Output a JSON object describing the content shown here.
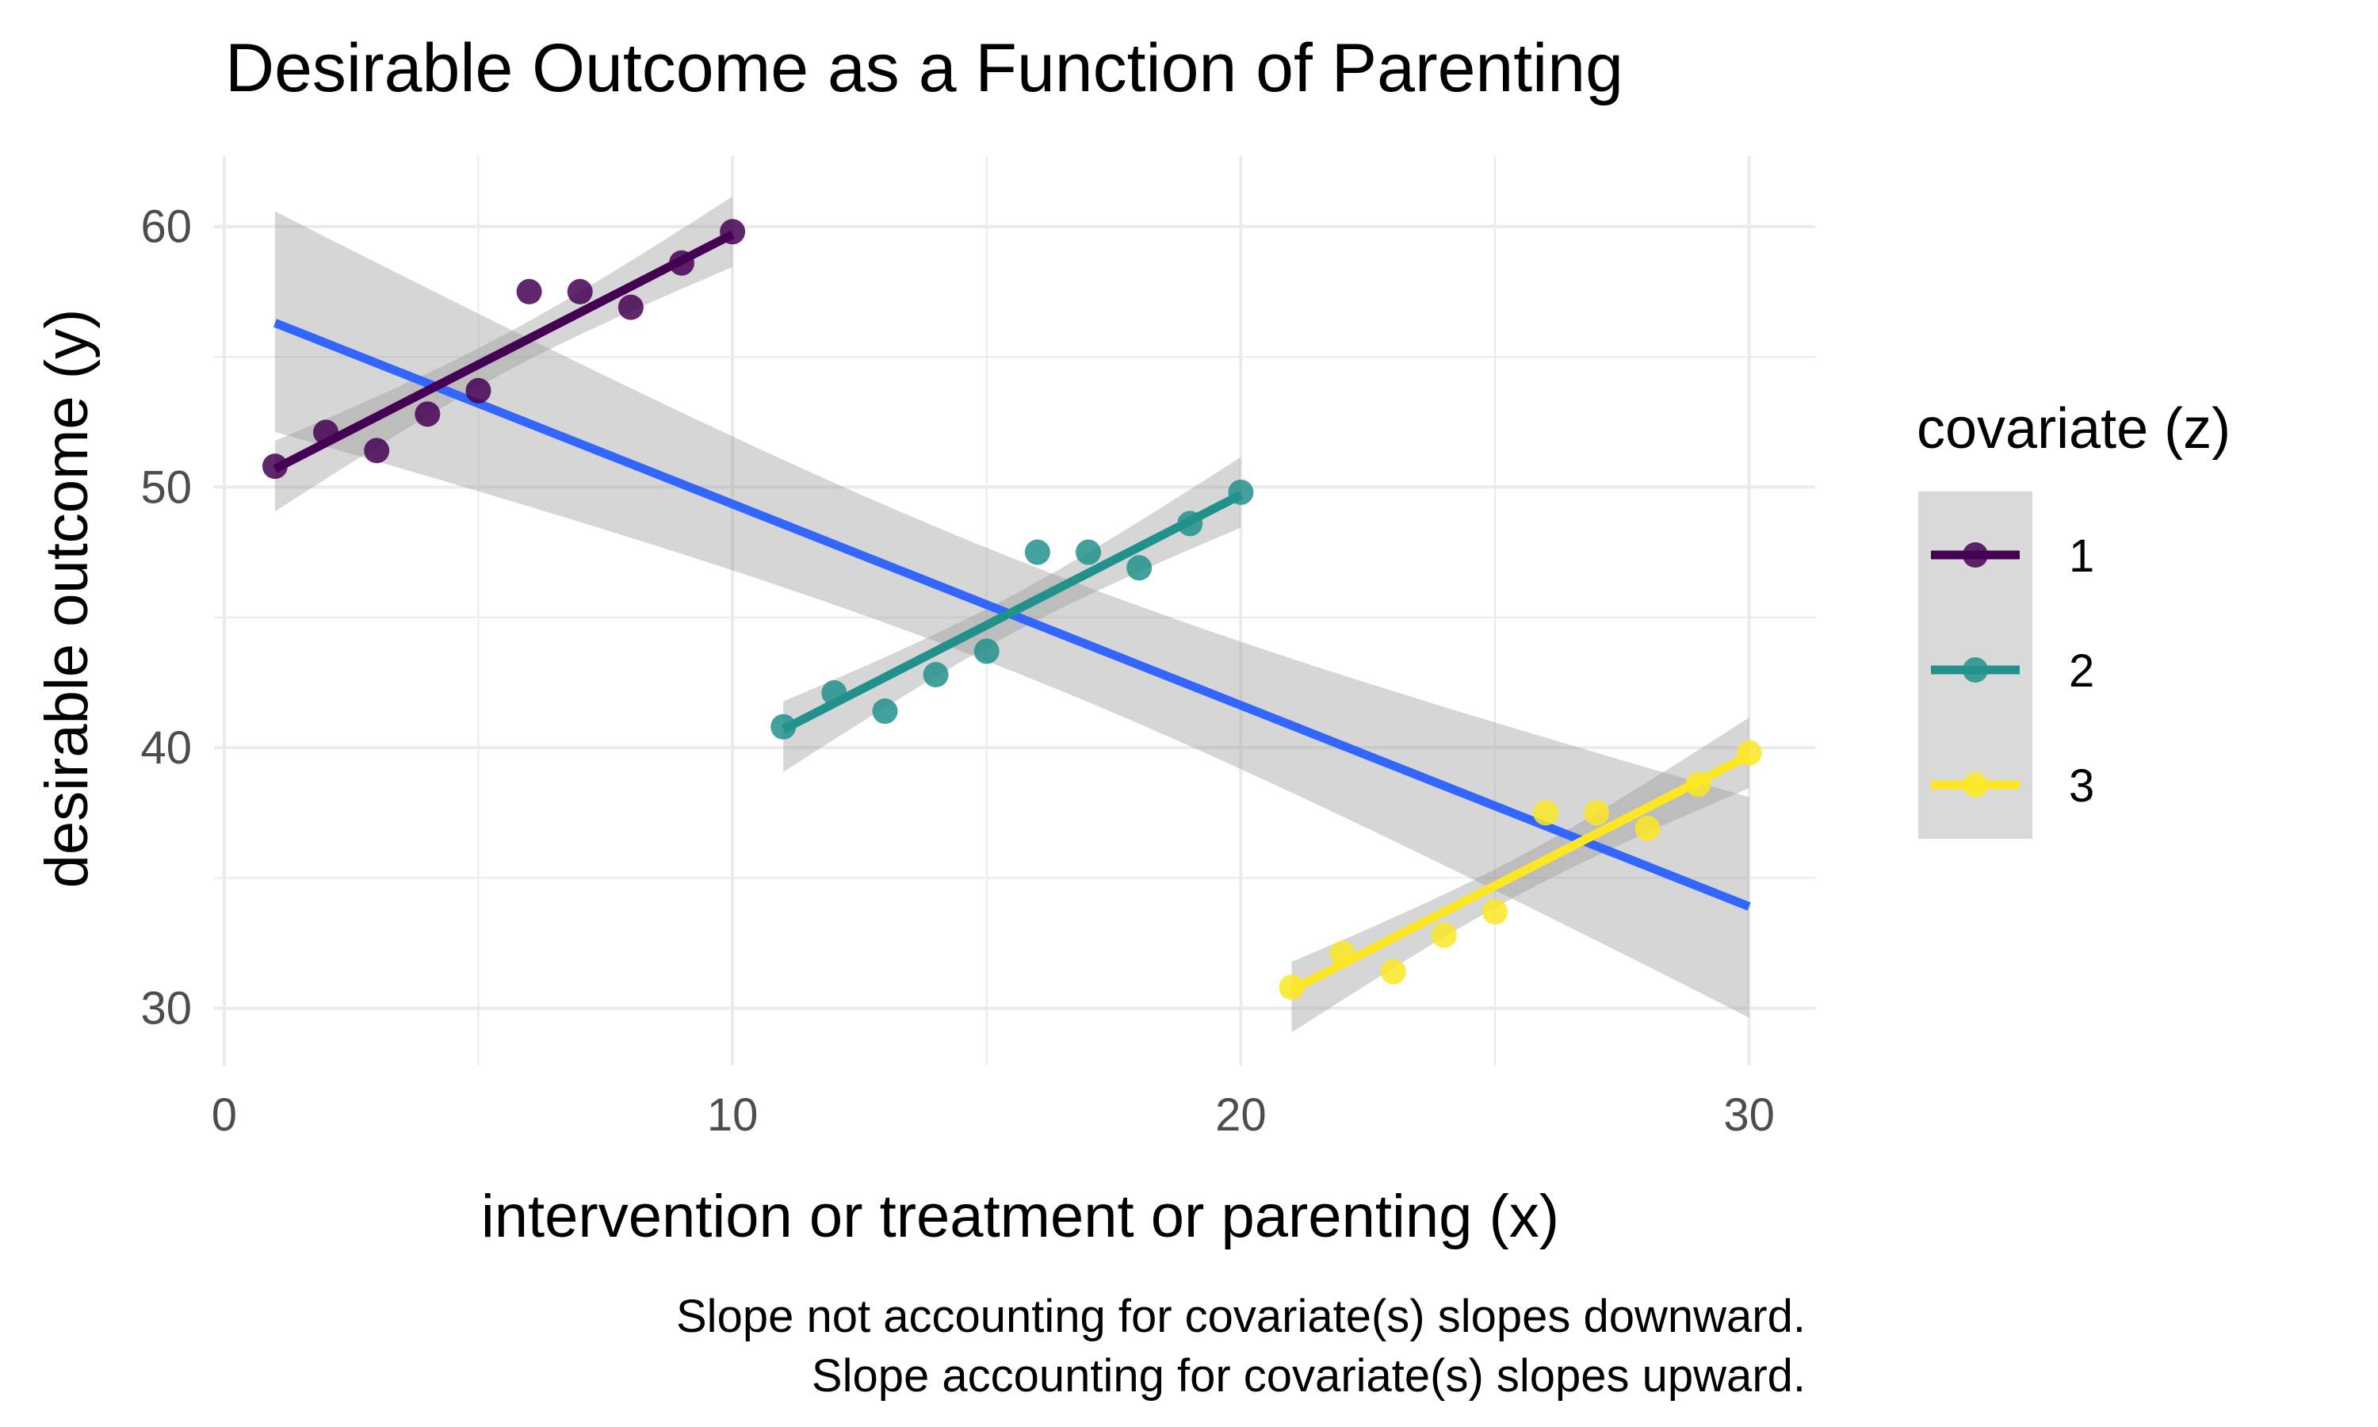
{
  "chart_data": {
    "type": "scatter",
    "title": "Desirable Outcome as a Function of Parenting",
    "xlabel": "intervention or treatment or parenting (x)",
    "ylabel": "desirable outcome (y)",
    "xlim": [
      -0.2,
      31.3
    ],
    "ylim": [
      27.8,
      62.7
    ],
    "x_ticks": [
      0,
      10,
      20,
      30
    ],
    "y_ticks": [
      30,
      40,
      50,
      60
    ],
    "grid": true,
    "legend": {
      "title": "covariate (z)",
      "position": "right"
    },
    "caption": [
      "Slope not accounting for covariate(s) slopes downward.",
      "Slope accounting for covariate(s) slopes upward."
    ],
    "series": [
      {
        "name": "1",
        "color": "#440154",
        "points": [
          [
            1,
            50.8
          ],
          [
            2,
            52.1
          ],
          [
            3,
            51.4
          ],
          [
            4,
            52.8
          ],
          [
            5,
            53.7
          ],
          [
            6,
            57.5
          ],
          [
            7,
            57.5
          ],
          [
            8,
            56.9
          ],
          [
            9,
            58.6
          ],
          [
            10,
            59.8
          ]
        ],
        "fit": {
          "x": [
            1,
            10
          ],
          "y": [
            50.7,
            59.7
          ]
        }
      },
      {
        "name": "2",
        "color": "#21918c",
        "points": [
          [
            11,
            40.8
          ],
          [
            12,
            42.1
          ],
          [
            13,
            41.4
          ],
          [
            14,
            42.8
          ],
          [
            15,
            43.7
          ],
          [
            16,
            47.5
          ],
          [
            17,
            47.5
          ],
          [
            18,
            46.9
          ],
          [
            19,
            48.6
          ],
          [
            20,
            49.8
          ]
        ],
        "fit": {
          "x": [
            11,
            20
          ],
          "y": [
            40.7,
            49.7
          ]
        }
      },
      {
        "name": "3",
        "color": "#fde725",
        "points": [
          [
            21,
            30.8
          ],
          [
            22,
            32.1
          ],
          [
            23,
            31.4
          ],
          [
            24,
            32.8
          ],
          [
            25,
            33.7
          ],
          [
            26,
            37.5
          ],
          [
            27,
            37.5
          ],
          [
            28,
            36.9
          ],
          [
            29,
            38.6
          ],
          [
            30,
            39.8
          ]
        ],
        "fit": {
          "x": [
            21,
            30
          ],
          "y": [
            30.7,
            39.7
          ]
        }
      }
    ],
    "overall_fit": {
      "color": "#3366ff",
      "x": [
        1,
        30
      ],
      "y": [
        56.3,
        33.9
      ]
    },
    "confidence_band_color": "#999999"
  }
}
